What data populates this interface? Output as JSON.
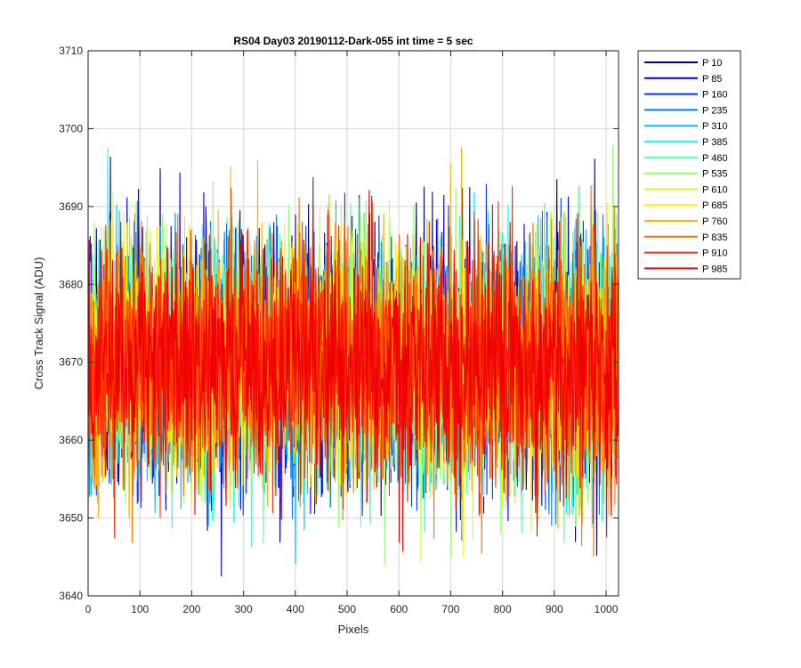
{
  "chart_data": {
    "type": "line",
    "title": "RS04 Day03 20190112-Dark-055 int time = 5 sec",
    "xlabel": "Pixels",
    "ylabel": "Cross Track Signal (ADU)",
    "xlim": [
      0,
      1024
    ],
    "ylim": [
      3640,
      3710
    ],
    "xticks": [
      0,
      100,
      200,
      300,
      400,
      500,
      600,
      700,
      800,
      900,
      1000
    ],
    "yticks": [
      3640,
      3650,
      3660,
      3670,
      3680,
      3690,
      3700,
      3710
    ],
    "grid": true,
    "legend_position": "outside-top-right",
    "n_points_per_series": 1024,
    "signal_mean_approx": 3670,
    "signal_range_approx": [
      3641,
      3703
    ],
    "series": [
      {
        "name": "P 10",
        "color": "#00008F"
      },
      {
        "name": "P 85",
        "color": "#0000E0"
      },
      {
        "name": "P 160",
        "color": "#0038FF"
      },
      {
        "name": "P 235",
        "color": "#0080FF"
      },
      {
        "name": "P 310",
        "color": "#00BFFF"
      },
      {
        "name": "P 385",
        "color": "#10FFEF"
      },
      {
        "name": "P 460",
        "color": "#50FFAF"
      },
      {
        "name": "P 535",
        "color": "#90FF70"
      },
      {
        "name": "P 610",
        "color": "#CFFF30"
      },
      {
        "name": "P 685",
        "color": "#FFEF00"
      },
      {
        "name": "P 760",
        "color": "#FFB000"
      },
      {
        "name": "P 835",
        "color": "#FF7000"
      },
      {
        "name": "P 910",
        "color": "#FF3000"
      },
      {
        "name": "P 985",
        "color": "#F00000"
      }
    ]
  }
}
